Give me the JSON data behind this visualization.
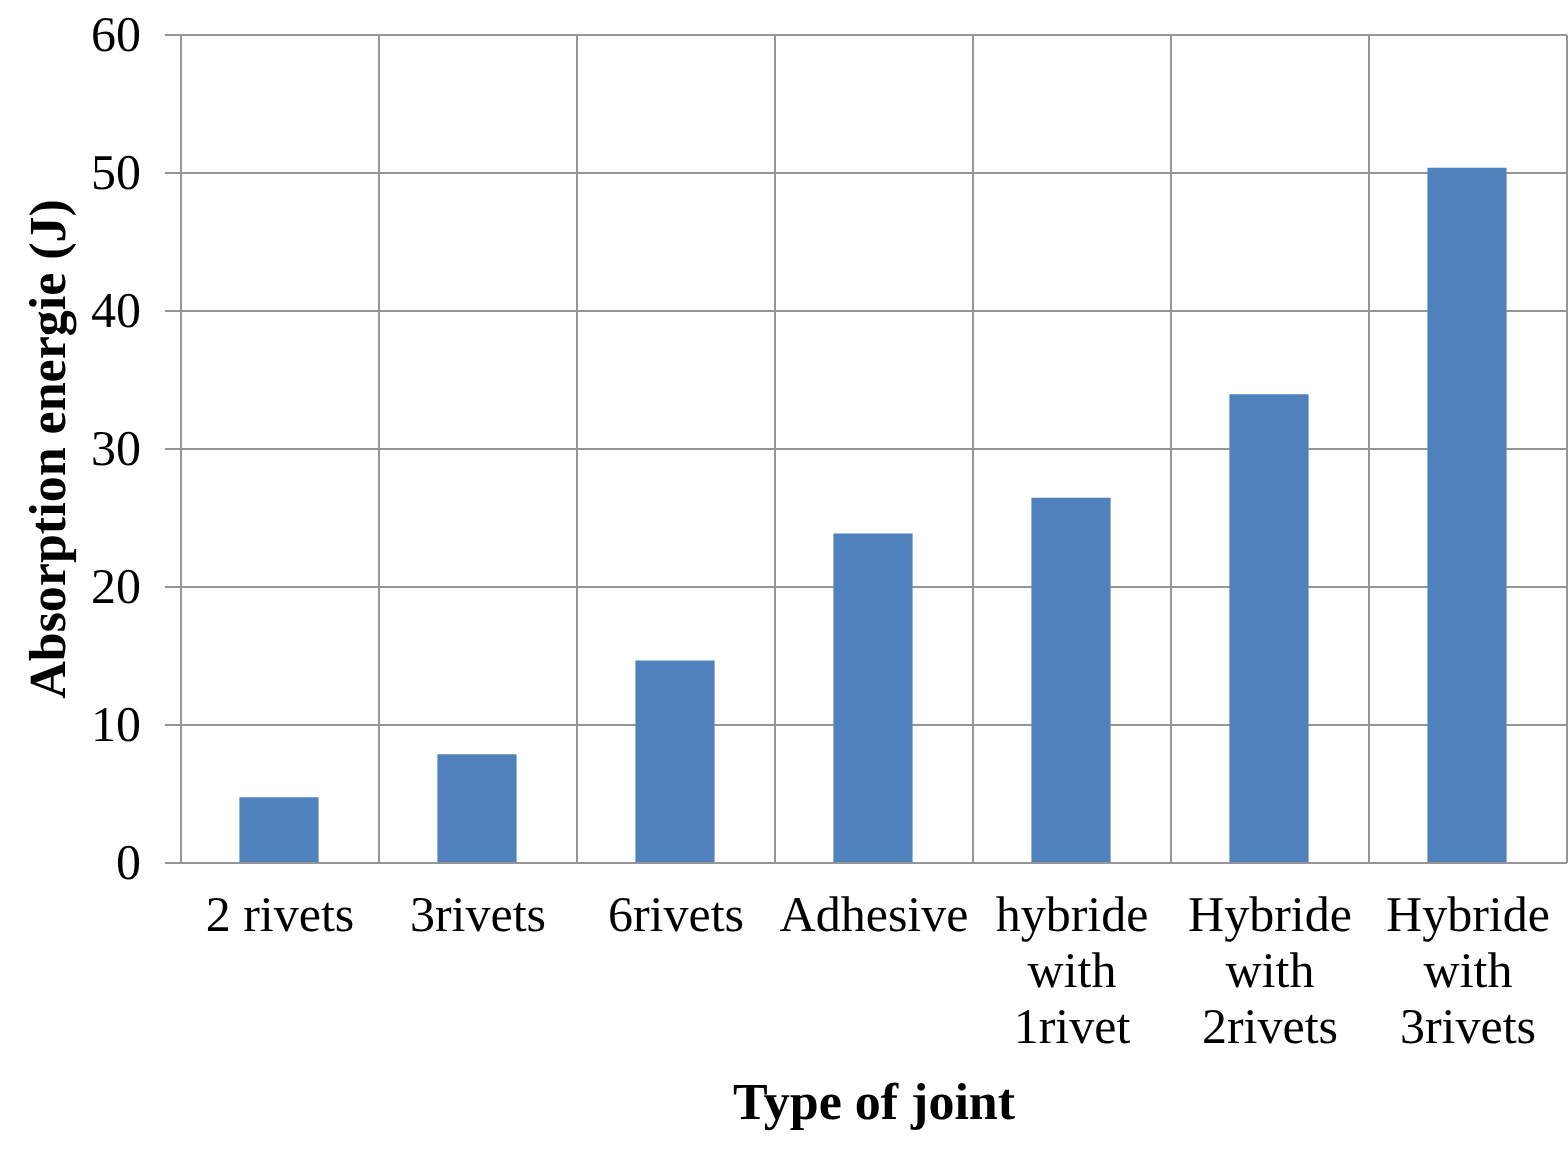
{
  "chart_data": {
    "type": "bar",
    "xlabel": "Type of joint",
    "ylabel": "Absorption energie (J)",
    "categories": [
      "2 rivets",
      "3rivets",
      "6rivets",
      "Adhesive",
      "hybride with 1rivet",
      "Hybride with 2rivets",
      "Hybride with 3rivets"
    ],
    "values": [
      4.7,
      7.8,
      14.6,
      23.8,
      26.4,
      33.9,
      50.3
    ],
    "color": "#4f81bd",
    "ylim": [
      0,
      60
    ],
    "yticks": [
      0,
      10,
      20,
      30,
      40,
      50,
      60
    ],
    "grid": true
  }
}
